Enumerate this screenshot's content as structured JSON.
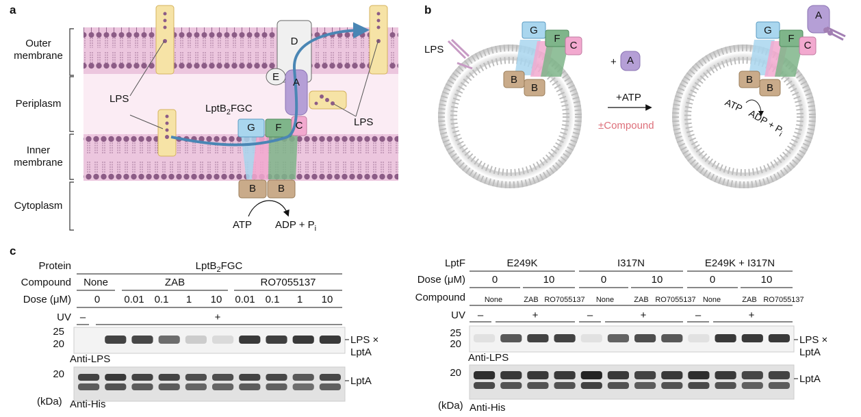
{
  "panels": {
    "a": "a",
    "b": "b",
    "c": "c"
  },
  "panel_a": {
    "regions": {
      "outer": "Outer\nmembrane",
      "peri": "Periplasm",
      "inner": "Inner\nmembrane",
      "cyto": "Cytoplasm"
    },
    "subunits": {
      "D": "D",
      "E": "E",
      "A": "A",
      "G": "G",
      "F": "F",
      "C": "C",
      "B1": "B",
      "B2": "B"
    },
    "lps_left": "LPS",
    "lps_right": "LPS",
    "complex_label_main": "LptB",
    "complex_label_sub": "2",
    "complex_label_end": "FGC",
    "atp": "ATP",
    "adp_main": "ADP + P",
    "adp_sub": "i"
  },
  "panel_b": {
    "lps": "LPS",
    "subunits": {
      "G1": "G",
      "F1": "F",
      "C1": "C",
      "B1a": "B",
      "B1b": "B",
      "A_add": "A",
      "plus": "+",
      "G2": "G",
      "F2": "F",
      "C2": "C",
      "A2": "A",
      "B2a": "B",
      "B2b": "B"
    },
    "atp_add": "+ATP",
    "compound": "±Compound",
    "atp": "ATP",
    "adp_main": "ADP + P",
    "adp_sub": "i"
  },
  "panel_c_left": {
    "row_labels": {
      "protein": "Protein",
      "compound": "Compound",
      "dose": "Dose (μM)",
      "uv": "UV"
    },
    "protein_main": "LptB",
    "protein_sub": "2",
    "protein_end": "FGC",
    "compound_groups": [
      "None",
      "ZAB",
      "RO7055137"
    ],
    "doses": [
      "0",
      "0.01",
      "0.1",
      "1",
      "10",
      "0.01",
      "0.1",
      "1",
      "10"
    ],
    "uv_minus": "–",
    "uv_plus": "+",
    "mw_top": [
      "25",
      "20"
    ],
    "mw_bottom": [
      "20"
    ],
    "mw_unit": "(kDa)",
    "blot1_label": "Anti-LPS",
    "blot2_label": "Anti-His",
    "band1_main": "LPS ×",
    "band1_sub": "LptA",
    "band2": "LptA"
  },
  "panel_c_right": {
    "row_labels": {
      "lptf": "LptF",
      "dose": "Dose (μM)",
      "compound": "Compound",
      "uv": "UV"
    },
    "mutants": [
      "E249K",
      "I317N",
      "E249K + I317N"
    ],
    "doses": [
      "0",
      "10",
      "0",
      "10",
      "0",
      "10"
    ],
    "compounds": [
      "None",
      "ZAB",
      "RO7055137",
      "None",
      "ZAB",
      "RO7055137",
      "None",
      "ZAB",
      "RO7055137"
    ],
    "uv": [
      "–",
      "+",
      "–",
      "+",
      "–",
      "+"
    ],
    "mw_top": [
      "25",
      "20"
    ],
    "mw_bottom": [
      "20"
    ],
    "mw_unit": "(kDa)",
    "blot1_label": "Anti-LPS",
    "blot2_label": "Anti-His",
    "band1_main": "LPS ×",
    "band1_sub": "LptA",
    "band2": "LptA"
  },
  "colors": {
    "membrane_bg": "#ecc6de",
    "periplasm_bg": "#fbecf4",
    "lipid_head": "#8c5c86",
    "lptA": "#b59fd6",
    "lptB": "#c9ab8a",
    "lptF": "#7fb58a",
    "lptG": "#a9d6ee",
    "lptC": "#f2a9cf",
    "lps_box": "#f6e3a6",
    "arrow": "#4a86b4",
    "compound": "#dd6f7a"
  },
  "blot_left_top": [
    0,
    0.8,
    0.78,
    0.6,
    0.15,
    0.08,
    0.85,
    0.82,
    0.85,
    0.85
  ],
  "blot_left_bottom": [
    0.8,
    0.85,
    0.8,
    0.8,
    0.75,
    0.75,
    0.8,
    0.78,
    0.7,
    0.78
  ],
  "blot_right_top": [
    0.05,
    0.7,
    0.8,
    0.8,
    0.05,
    0.65,
    0.75,
    0.7,
    0.05,
    0.85,
    0.85,
    0.85
  ],
  "blot_right_bottom": [
    0.9,
    0.85,
    0.85,
    0.85,
    0.95,
    0.85,
    0.8,
    0.85,
    0.9,
    0.85,
    0.78,
    0.8
  ]
}
